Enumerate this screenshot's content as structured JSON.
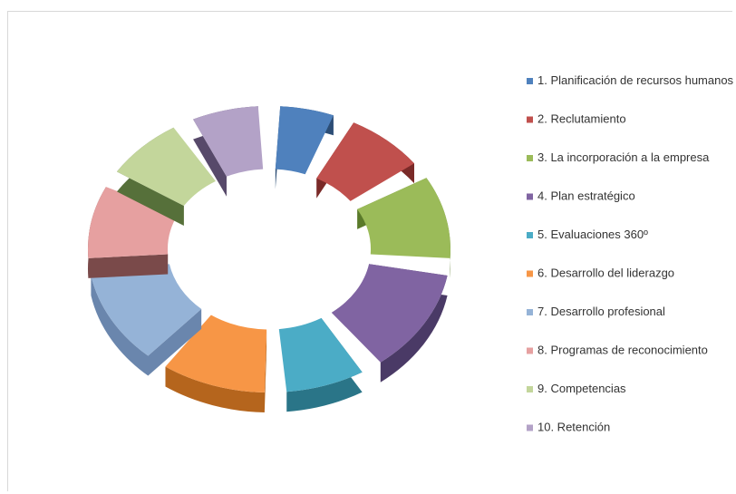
{
  "chart_data": {
    "type": "pie",
    "style": "exploded-3d",
    "legend_position": "right",
    "categories": [
      "1. Planificación de recursos humanos",
      "2. Reclutamiento",
      "3. La incorporación a la empresa",
      "4. Plan estratégico",
      "5. Evaluaciones 360º",
      "6. Desarrollo del liderazgo",
      "7. Desarrollo profesional",
      "8. Programas de reconocimiento",
      "9. Competencias",
      "10. Retención"
    ],
    "values": [
      6,
      8,
      10,
      12,
      8,
      10,
      11,
      9,
      8,
      7
    ],
    "colors": [
      "#4f81bd",
      "#c0504d",
      "#9bbb59",
      "#8064a2",
      "#4bacc6",
      "#f79646",
      "#95b3d7",
      "#e6a0a0",
      "#c3d69b",
      "#b3a2c7"
    ],
    "side_colors": [
      "#2c4d75",
      "#7a2a28",
      "#5a7a2a",
      "#4a3a66",
      "#2a7588",
      "#b5651d",
      "#6a86ad",
      "#7a4a4a",
      "#56703a",
      "#57496a"
    ]
  }
}
